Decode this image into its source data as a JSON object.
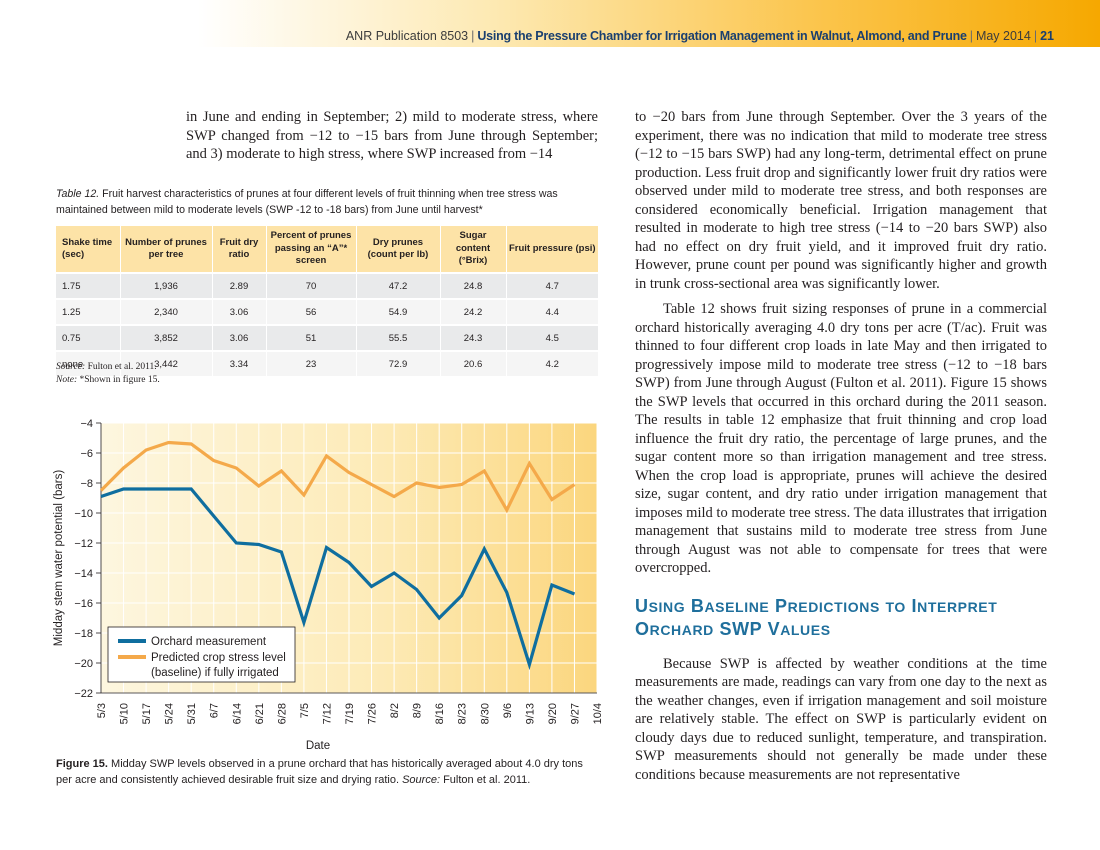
{
  "header": {
    "publication": "ANR Publication 8503",
    "title": "Using the Pressure Chamber for Irrigation Management in Walnut, Almond, and Prune",
    "date": "May 2014",
    "page_number": "21"
  },
  "left_top_text": "in June and ending in September; 2) mild to moderate stress, where SWP changed from −12 to −15 bars from June through September; and 3) moderate to high stress, where SWP increased from −14",
  "table": {
    "caption_label": "Table 12.",
    "caption_text": "Fruit harvest characteristics of prunes at four different levels of fruit thinning when tree stress was maintained between mild to moderate levels (SWP -12 to -18 bars) from June until harvest*",
    "headers": [
      "Shake time (sec)",
      "Number of prunes per tree",
      "Fruit dry ratio",
      "Percent of prunes passing an “A”* screen",
      "Dry prunes (count per lb)",
      "Sugar content (°Brix)",
      "Fruit pressure (psi)"
    ],
    "rows": [
      [
        "1.75",
        "1,936",
        "2.89",
        "70",
        "47.2",
        "24.8",
        "4.7"
      ],
      [
        "1.25",
        "2,340",
        "3.06",
        "56",
        "54.9",
        "24.2",
        "4.4"
      ],
      [
        "0.75",
        "3,852",
        "3.06",
        "51",
        "55.5",
        "24.3",
        "4.5"
      ],
      [
        "none",
        "3,442",
        "3.34",
        "23",
        "72.9",
        "20.6",
        "4.2"
      ]
    ],
    "source_label": "Source:",
    "source_text": "Fulton et al. 2011.",
    "note_label": "Note:",
    "note_text": "*Shown in figure 15."
  },
  "chart_data": {
    "type": "line",
    "xlabel": "Date",
    "ylabel": "Midday stem water potential (bars)",
    "ylim": [
      -22,
      -4
    ],
    "y_ticks": [
      -4,
      -6,
      -8,
      -10,
      -12,
      -14,
      -16,
      -18,
      -20,
      -22
    ],
    "y_tick_labels": [
      "−4",
      "−6",
      "−8",
      "−10",
      "−12",
      "−14",
      "−16",
      "−18",
      "−20",
      "−22"
    ],
    "categories": [
      "5/3",
      "5/10",
      "5/17",
      "5/24",
      "5/31",
      "6/7",
      "6/14",
      "6/21",
      "6/28",
      "7/5",
      "7/12",
      "7/19",
      "7/26",
      "8/2",
      "8/9",
      "8/16",
      "8/23",
      "8/30",
      "9/6",
      "9/13",
      "9/20",
      "9/27",
      "10/4"
    ],
    "grid": true,
    "legend_position": "bottom-left",
    "series": [
      {
        "name": "Orchard measurement",
        "color": "#0f6e9f",
        "x": [
          "5/3",
          "5/10",
          "5/17",
          "5/24",
          "5/31",
          "6/7",
          "6/14",
          "6/21",
          "6/28",
          "7/5",
          "7/12",
          "7/19",
          "7/26",
          "8/2",
          "8/9",
          "8/16",
          "8/23",
          "8/30",
          "9/6",
          "9/13",
          "9/20",
          "9/27"
        ],
        "values": [
          -8.9,
          -8.4,
          -8.4,
          -8.4,
          -8.4,
          -10.2,
          -12.0,
          -12.1,
          -12.6,
          -17.3,
          -12.3,
          -13.3,
          -14.9,
          -14.0,
          -15.1,
          -17.0,
          -15.5,
          -12.4,
          -15.3,
          -20.1,
          -14.8,
          -15.4
        ]
      },
      {
        "name": "Predicted crop stress level (baseline) if fully irrigated",
        "color": "#f4a94a",
        "x": [
          "5/3",
          "5/10",
          "5/17",
          "5/24",
          "5/31",
          "6/7",
          "6/14",
          "6/21",
          "6/28",
          "7/5",
          "7/12",
          "7/19",
          "7/26",
          "8/2",
          "8/9",
          "8/16",
          "8/23",
          "8/30",
          "9/6",
          "9/13",
          "9/20",
          "9/27"
        ],
        "values": [
          -8.5,
          -7.0,
          -5.8,
          -5.3,
          -5.4,
          -6.5,
          -7.0,
          -8.2,
          -7.2,
          -8.8,
          -6.2,
          -7.3,
          -8.1,
          -8.9,
          -8.0,
          -8.3,
          -8.1,
          -7.2,
          -9.8,
          -6.7,
          -9.1,
          -8.1
        ]
      }
    ]
  },
  "figure": {
    "label": "Figure 15.",
    "text": "Midday SWP levels observed in a prune orchard that has historically averaged about 4.0 dry tons per acre and consistently achieved desirable fruit size and drying ratio.",
    "source_label": "Source:",
    "source_text": "Fulton et al. 2011."
  },
  "right_col": {
    "para1": "to −20 bars from June through September. Over the 3 years of the experiment, there was no indication that mild to moderate tree stress (−12 to −15 bars SWP) had any long-term, detrimental effect on prune production. Less fruit drop and significantly lower fruit dry ratios were observed under mild to moderate tree stress, and both responses are considered economically beneficial. Irrigation management that resulted in moderate to high tree stress (−14 to −20 bars SWP) also had no effect on dry fruit yield, and it improved fruit dry ratio. However, prune count per pound was significantly higher and growth in trunk cross-sectional area was significantly lower.",
    "para2": "Table 12 shows fruit sizing responses of prune in a commercial orchard historically averaging 4.0 dry tons per acre (T/ac). Fruit was thinned to four different crop loads in late May and then irrigated to progressively impose mild to moderate tree stress (−12 to −18 bars SWP) from June through August (Fulton et al. 2011). Figure 15 shows the SWP levels that occurred in this orchard during the 2011 season. The results in table 12 emphasize that fruit thinning and crop load influence the fruit dry ratio, the percentage of large prunes, and the sugar content more so than irrigation management and tree stress. When the crop load is appropriate, prunes will achieve the desired size, sugar content, and dry ratio under irrigation management that imposes mild to moderate tree stress. The data illustrates that irrigation management that sustains mild to moderate tree stress from June through August was not able to compensate for trees that were overcropped.",
    "heading": "Using Baseline Predictions to Interpret Orchard SWP Values",
    "heading_line1": [
      {
        "cap": "U",
        "rest": "SING"
      },
      {
        "cap": "B",
        "rest": "ASELINE"
      },
      {
        "cap": "P",
        "rest": "REDICTIONS"
      },
      {
        "cap": "",
        "rest": "TO"
      },
      {
        "cap": "I",
        "rest": "NTERPRET"
      }
    ],
    "heading_line2": [
      {
        "cap": "O",
        "rest": "RCHARD"
      },
      {
        "cap": "SWP",
        "rest": ""
      },
      {
        "cap": "V",
        "rest": "ALUES"
      }
    ],
    "para3": "Because SWP is affected by weather conditions at the time measurements are made, readings can vary from one day to the next as the weather changes, even if irrigation management and soil moisture are relatively stable. The effect on SWP is particularly evident on cloudy days due to reduced sunlight, temperature, and transpiration. SWP measurements should not generally be made under these conditions because measurements are not representative"
  }
}
